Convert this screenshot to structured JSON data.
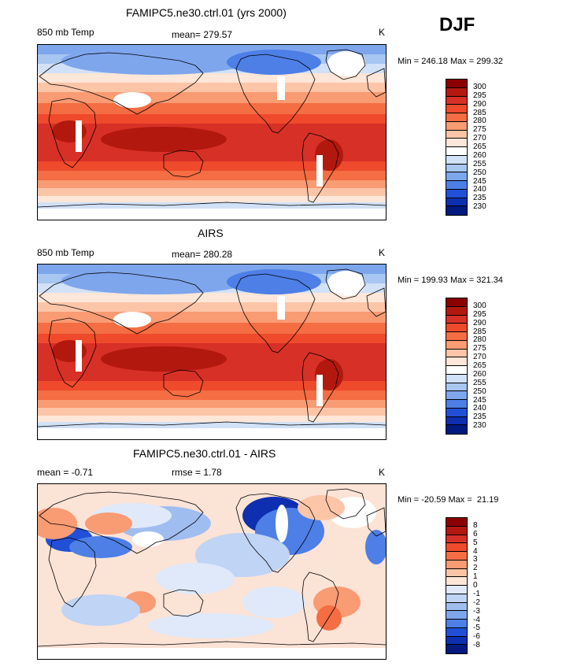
{
  "season": "DJF",
  "panels": [
    {
      "title": "FAMIPC5.ne30.ctrl.01 (yrs 2000)",
      "left_label": "850 mb Temp",
      "center_label": "mean= 279.57",
      "units": "K",
      "minmax": "Min = 246.18 Max = 299.32",
      "colorbar": {
        "labels": [
          "300",
          "295",
          "290",
          "285",
          "280",
          "275",
          "270",
          "265",
          "260",
          "255",
          "250",
          "245",
          "240",
          "235",
          "230"
        ],
        "colors": [
          "#8b0000",
          "#b2180e",
          "#d73027",
          "#ef4a2c",
          "#f46d43",
          "#f99b73",
          "#fcc5a8",
          "#fee6d8",
          "#ffffff",
          "#d1e1f7",
          "#a8c6f2",
          "#7ea6ec",
          "#4d7fe6",
          "#2150d6",
          "#0d2fb0",
          "#001a80"
        ]
      },
      "map_style": "abs"
    },
    {
      "title": "AIRS",
      "left_label": "850 mb Temp",
      "center_label": "mean= 280.28",
      "units": "K",
      "minmax": "Min = 199.93 Max = 321.34",
      "colorbar": {
        "labels": [
          "300",
          "295",
          "290",
          "285",
          "280",
          "275",
          "270",
          "265",
          "260",
          "255",
          "250",
          "245",
          "240",
          "235",
          "230"
        ],
        "colors": [
          "#8b0000",
          "#b2180e",
          "#d73027",
          "#ef4a2c",
          "#f46d43",
          "#f99b73",
          "#fcc5a8",
          "#fee6d8",
          "#ffffff",
          "#d1e1f7",
          "#a8c6f2",
          "#7ea6ec",
          "#4d7fe6",
          "#2150d6",
          "#0d2fb0",
          "#001a80"
        ]
      },
      "map_style": "abs"
    },
    {
      "title": "FAMIPC5.ne30.ctrl.01 - AIRS",
      "left_label": "mean =   -0.71",
      "center_label": "rmse =    1.78",
      "units": "K",
      "minmax": "Min = -20.59 Max =  21.19",
      "colorbar": {
        "labels": [
          "8",
          "6",
          "5",
          "4",
          "3",
          "2",
          "1",
          "0",
          "-1",
          "-2",
          "-3",
          "-4",
          "-5",
          "-6",
          "-8"
        ],
        "colors": [
          "#8b0000",
          "#b2180e",
          "#d73027",
          "#ef4a2c",
          "#f46d43",
          "#f99b73",
          "#fcc5a8",
          "#fee6d8",
          "#dfe9fa",
          "#c0d4f5",
          "#a0bdf0",
          "#7ea6ec",
          "#4d7fe6",
          "#2150d6",
          "#0d2fb0",
          "#001a80"
        ]
      },
      "map_style": "diff"
    }
  ]
}
